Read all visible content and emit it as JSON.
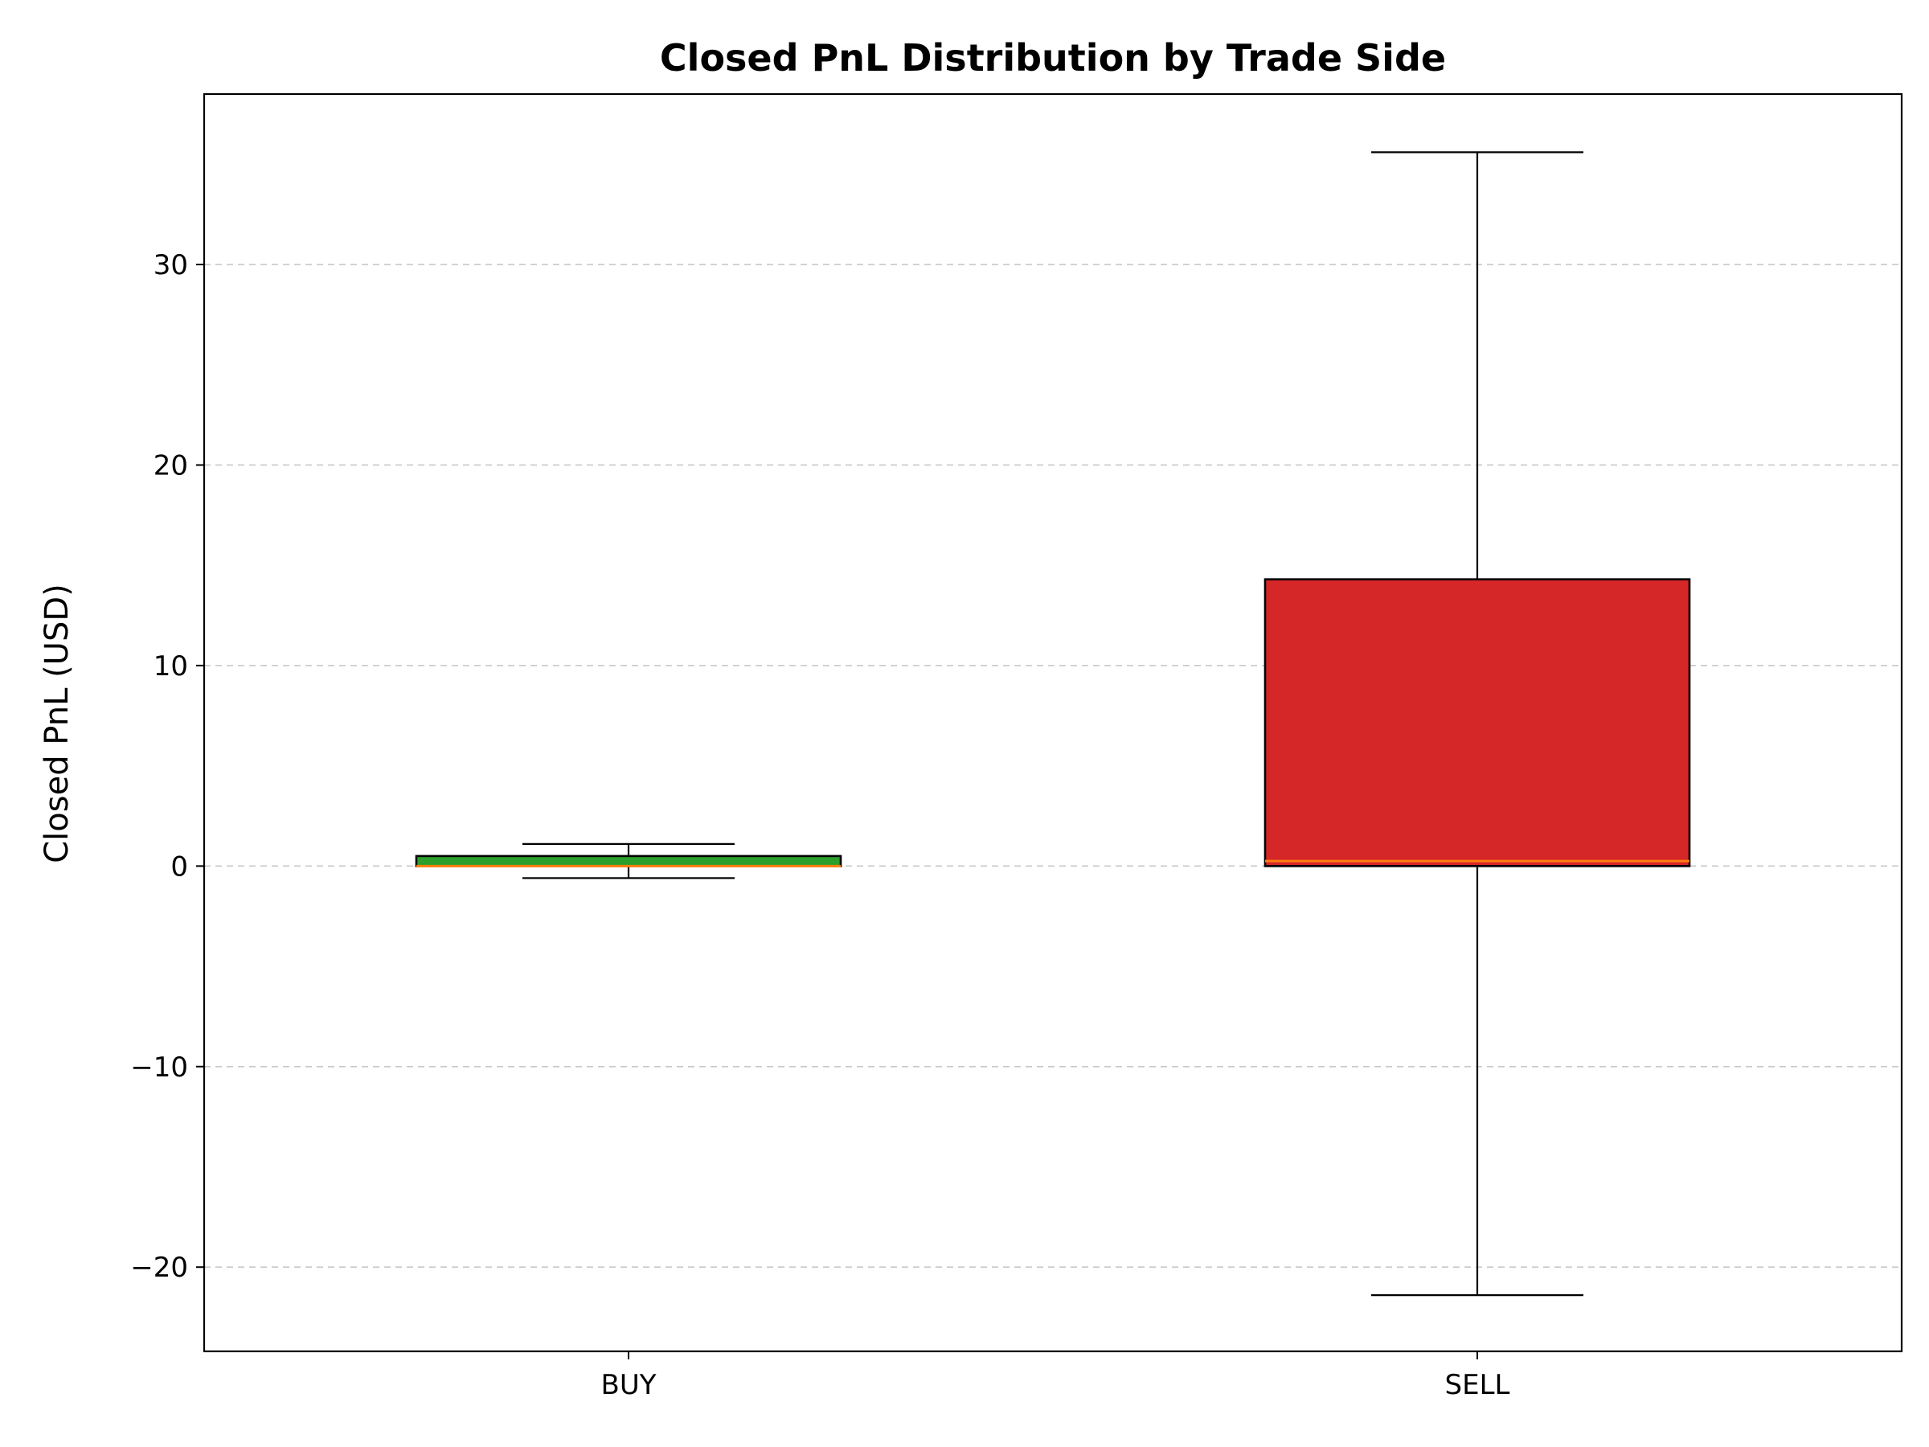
{
  "chart_data": {
    "type": "box",
    "title": "Closed PnL Distribution by Trade Side",
    "xlabel": "",
    "ylabel": "Closed PnL (USD)",
    "ylim": [
      -24.2,
      38.5
    ],
    "yticks": [
      -20,
      -10,
      0,
      10,
      20,
      30
    ],
    "ytick_labels": [
      "−20",
      "−10",
      "0",
      "10",
      "20",
      "30"
    ],
    "grid": {
      "axis": "y",
      "style": "dashed"
    },
    "categories": [
      "BUY",
      "SELL"
    ],
    "series": [
      {
        "category": "BUY",
        "color": "#2ca02c",
        "whisker_low": -0.6,
        "q1": 0.0,
        "median": 0.0,
        "q3": 0.5,
        "whisker_high": 1.1
      },
      {
        "category": "SELL",
        "color": "#d62728",
        "whisker_low": -21.4,
        "q1": 0.0,
        "median": 0.25,
        "q3": 14.3,
        "whisker_high": 35.6
      }
    ],
    "median_color": "#ff7f0e"
  }
}
